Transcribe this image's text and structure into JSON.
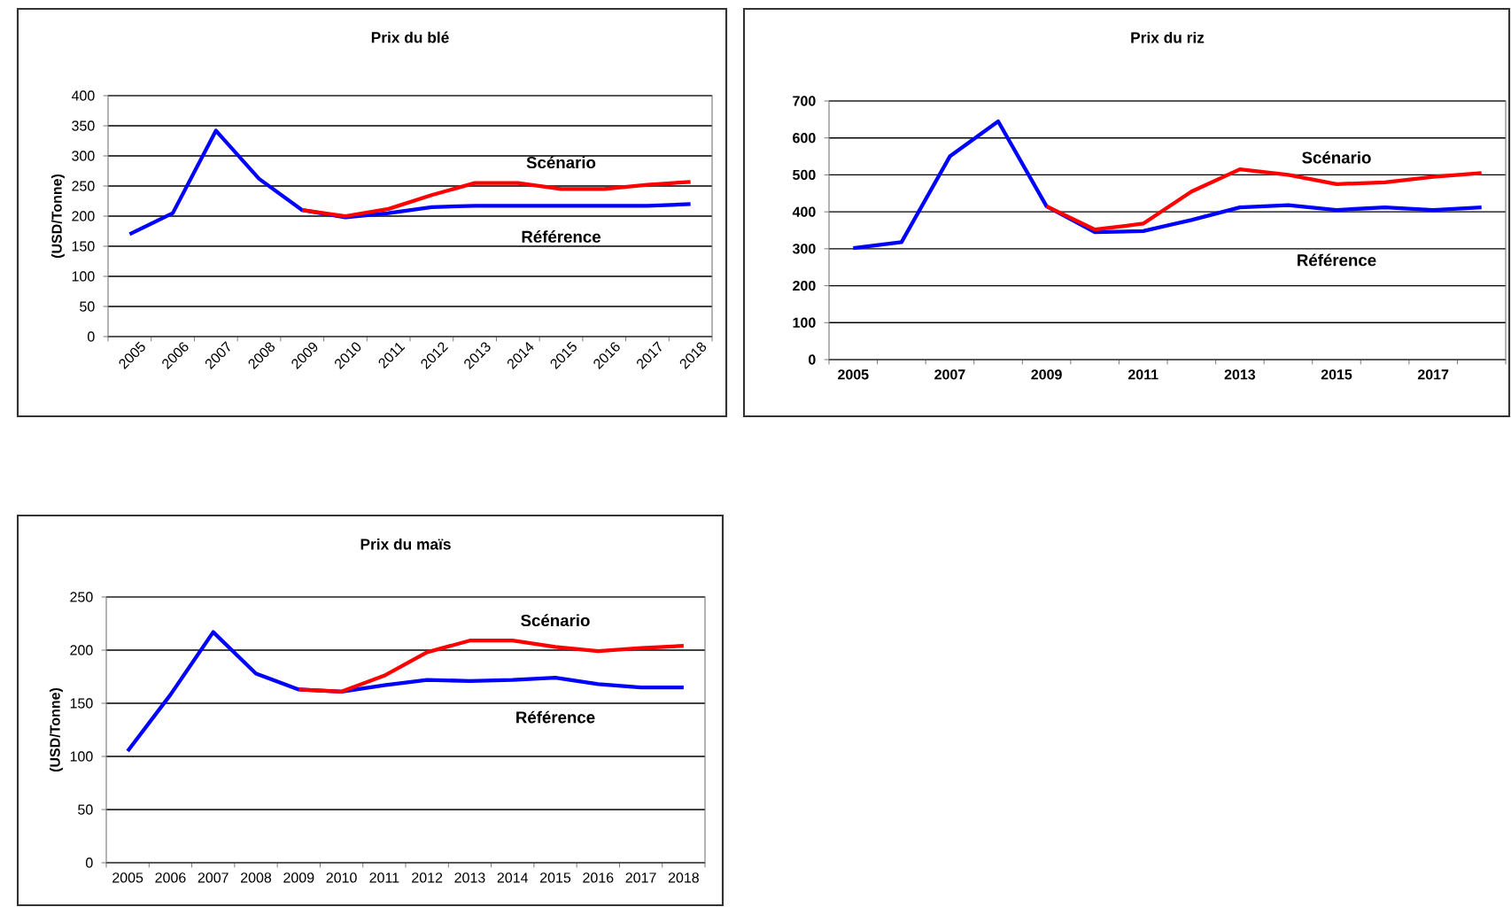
{
  "chart_data": [
    {
      "type": "line",
      "title": "Prix du blé",
      "ylabel": "(USD/Tonne)",
      "categories": [
        "2005",
        "2006",
        "2007",
        "2008",
        "2009",
        "2010",
        "2011",
        "2012",
        "2013",
        "2014",
        "2015",
        "2016",
        "2017",
        "2018"
      ],
      "ylim": [
        0,
        400
      ],
      "yticks": [
        0,
        50,
        100,
        150,
        200,
        250,
        300,
        350,
        400
      ],
      "grid": "y",
      "series": [
        {
          "name": "Référence",
          "color": "#0000ff",
          "values": [
            170,
            205,
            342,
            262,
            210,
            198,
            205,
            215,
            217,
            217,
            217,
            217,
            217,
            220
          ]
        },
        {
          "name": "Scénario",
          "color": "#ff0000",
          "values": [
            null,
            null,
            null,
            null,
            210,
            200,
            212,
            235,
            255,
            255,
            245,
            245,
            252,
            257
          ]
        }
      ]
    },
    {
      "type": "line",
      "title": "Prix du riz",
      "categories": [
        "2005",
        null,
        "2007",
        null,
        "2009",
        null,
        "2011",
        null,
        "2013",
        null,
        "2015",
        null,
        "2017",
        null
      ],
      "ylim": [
        0,
        700
      ],
      "yticks": [
        0,
        100,
        200,
        300,
        400,
        500,
        600,
        700
      ],
      "grid": "y",
      "series": [
        {
          "name": "Référence",
          "color": "#0000ff",
          "values": [
            302,
            318,
            550,
            645,
            415,
            345,
            348,
            378,
            412,
            418,
            405,
            412,
            405,
            412
          ]
        },
        {
          "name": "Scénario",
          "color": "#ff0000",
          "values": [
            null,
            null,
            null,
            null,
            415,
            352,
            368,
            455,
            515,
            500,
            475,
            480,
            495,
            505
          ]
        }
      ]
    },
    {
      "type": "line",
      "title": "Prix du maïs",
      "ylabel": "(USD/Tonne)",
      "categories": [
        "2005",
        "2006",
        "2007",
        "2008",
        "2009",
        "2010",
        "2011",
        "2012",
        "2013",
        "2014",
        "2015",
        "2016",
        "2017",
        "2018"
      ],
      "ylim": [
        0,
        250
      ],
      "yticks": [
        0,
        50,
        100,
        150,
        200,
        250
      ],
      "grid": "y",
      "series": [
        {
          "name": "Référence",
          "color": "#0000ff",
          "values": [
            105,
            158,
            217,
            178,
            163,
            161,
            167,
            172,
            171,
            172,
            174,
            168,
            165,
            165
          ]
        },
        {
          "name": "Scénario",
          "color": "#ff0000",
          "values": [
            null,
            null,
            null,
            null,
            163,
            161,
            176,
            198,
            209,
            209,
            203,
            199,
            202,
            204
          ]
        }
      ]
    }
  ]
}
